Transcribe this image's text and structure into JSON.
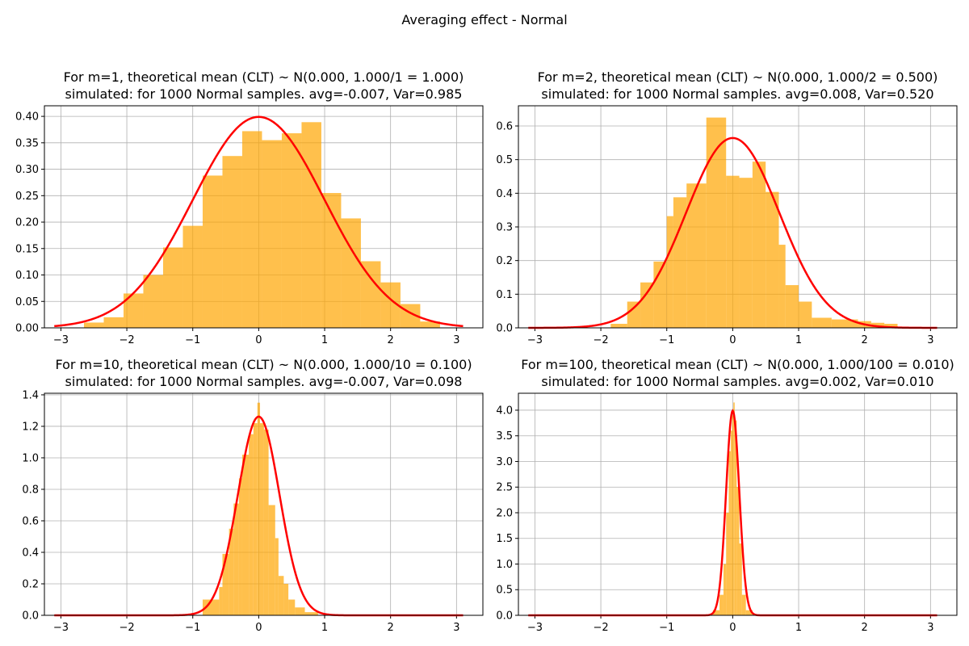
{
  "figure": {
    "suptitle": "Averaging effect - Normal"
  },
  "chart_data": [
    {
      "type": "bar",
      "title_line1": "For m=1, theoretical mean (CLT) ~ N(0.000, 1.000/1 = 1.000)",
      "title_line2": "simulated: for 1000 Normal samples. avg=-0.007, Var=0.985",
      "xlim": [
        -3.25,
        3.4
      ],
      "ylim": [
        0,
        0.42
      ],
      "xticks": [
        -3,
        -2,
        -1,
        0,
        1,
        2,
        3
      ],
      "yticks": [
        0.0,
        0.05,
        0.1,
        0.15,
        0.2,
        0.25,
        0.3,
        0.35,
        0.4
      ],
      "ytick_labels": [
        "0.00",
        "0.05",
        "0.10",
        "0.15",
        "0.20",
        "0.25",
        "0.30",
        "0.35",
        "0.40"
      ],
      "bin_edges": [
        -2.65,
        -2.35,
        -2.05,
        -1.75,
        -1.45,
        -1.15,
        -0.85,
        -0.55,
        -0.25,
        0.05,
        0.35,
        0.65,
        0.95,
        1.25,
        1.55,
        1.85,
        2.15,
        2.45,
        2.75
      ],
      "values": [
        0.01,
        0.02,
        0.065,
        0.1,
        0.152,
        0.193,
        0.288,
        0.325,
        0.372,
        0.355,
        0.368,
        0.389,
        0.255,
        0.207,
        0.126,
        0.086,
        0.045,
        0.012
      ],
      "curve": {
        "mean": 0.0,
        "variance": 1.0,
        "x_range": [
          -3.1,
          3.1
        ]
      },
      "grid": true,
      "bar_color": "#ffa500",
      "curve_color": "#ff0000"
    },
    {
      "type": "bar",
      "title_line1": "For m=2, theoretical mean (CLT) ~ N(0.000, 1.000/2 = 0.500)",
      "title_line2": "simulated: for 1000 Normal samples. avg=0.008, Var=0.520",
      "xlim": [
        -3.25,
        3.4
      ],
      "ylim": [
        0,
        0.66
      ],
      "xticks": [
        -3,
        -2,
        -1,
        0,
        1,
        2,
        3
      ],
      "yticks": [
        0.0,
        0.1,
        0.2,
        0.3,
        0.4,
        0.5,
        0.6
      ],
      "ytick_labels": [
        "0.0",
        "0.1",
        "0.2",
        "0.3",
        "0.4",
        "0.5",
        "0.6"
      ],
      "bin_edges": [
        -1.85,
        -1.6,
        -1.4,
        -1.2,
        -1.0,
        -0.9,
        -0.7,
        -0.4,
        -0.1,
        0.1,
        0.3,
        0.5,
        0.7,
        0.8,
        1.0,
        1.2,
        1.5,
        1.9,
        2.1,
        2.3,
        2.5
      ],
      "values": [
        0.012,
        0.078,
        0.135,
        0.197,
        0.332,
        0.388,
        0.429,
        0.625,
        0.452,
        0.446,
        0.494,
        0.404,
        0.247,
        0.127,
        0.078,
        0.03,
        0.025,
        0.02,
        0.015,
        0.012
      ],
      "curve": {
        "mean": 0.0,
        "variance": 0.5,
        "x_range": [
          -3.1,
          3.1
        ]
      },
      "grid": true,
      "bar_color": "#ffa500",
      "curve_color": "#ff0000"
    },
    {
      "type": "bar",
      "title_line1": "For m=10, theoretical mean (CLT) ~ N(0.000, 1.000/10 = 0.100)",
      "title_line2": "simulated: for 1000 Normal samples. avg=-0.007, Var=0.098",
      "xlim": [
        -3.25,
        3.4
      ],
      "ylim": [
        0,
        1.41
      ],
      "xticks": [
        -3,
        -2,
        -1,
        0,
        1,
        2,
        3
      ],
      "yticks": [
        0.0,
        0.2,
        0.4,
        0.6,
        0.8,
        1.0,
        1.2,
        1.4
      ],
      "ytick_labels": [
        "0.0",
        "0.2",
        "0.4",
        "0.6",
        "0.8",
        "1.0",
        "1.2",
        "1.4"
      ],
      "bin_edges": [
        -0.85,
        -0.6,
        -0.55,
        -0.45,
        -0.38,
        -0.3,
        -0.25,
        -0.15,
        -0.08,
        -0.02,
        0.02,
        0.08,
        0.15,
        0.25,
        0.3,
        0.38,
        0.45,
        0.55,
        0.7,
        0.9
      ],
      "values": [
        0.1,
        0.18,
        0.39,
        0.55,
        0.71,
        0.87,
        1.02,
        1.15,
        1.22,
        1.35,
        1.22,
        1.18,
        0.7,
        0.49,
        0.25,
        0.2,
        0.1,
        0.05,
        0.02
      ],
      "curve": {
        "mean": 0.0,
        "variance": 0.1,
        "x_range": [
          -3.1,
          3.1
        ]
      },
      "grid": true,
      "bar_color": "#ffa500",
      "curve_color": "#ff0000"
    },
    {
      "type": "bar",
      "title_line1": "For m=100, theoretical mean (CLT) ~ N(0.000, 1.000/100 = 0.010)",
      "title_line2": "simulated: for 1000 Normal samples. avg=0.002, Var=0.010",
      "xlim": [
        -3.25,
        3.4
      ],
      "ylim": [
        0,
        4.33
      ],
      "xticks": [
        -3,
        -2,
        -1,
        0,
        1,
        2,
        3
      ],
      "yticks": [
        0.0,
        0.5,
        1.0,
        1.5,
        2.0,
        2.5,
        3.0,
        3.5,
        4.0
      ],
      "ytick_labels": [
        "0.0",
        "0.5",
        "1.0",
        "1.5",
        "2.0",
        "2.5",
        "3.0",
        "3.5",
        "4.0"
      ],
      "bin_edges": [
        -0.3,
        -0.2,
        -0.14,
        -0.1,
        -0.06,
        -0.03,
        -0.01,
        0.01,
        0.03,
        0.06,
        0.1,
        0.14,
        0.2,
        0.3
      ],
      "values": [
        0.1,
        0.4,
        1.0,
        2.0,
        3.2,
        3.6,
        3.9,
        4.15,
        3.8,
        2.5,
        1.4,
        0.4,
        0.1
      ],
      "curve": {
        "mean": 0.0,
        "variance": 0.01,
        "x_range": [
          -3.1,
          3.1
        ]
      },
      "grid": true,
      "bar_color": "#ffa500",
      "curve_color": "#ff0000"
    }
  ]
}
